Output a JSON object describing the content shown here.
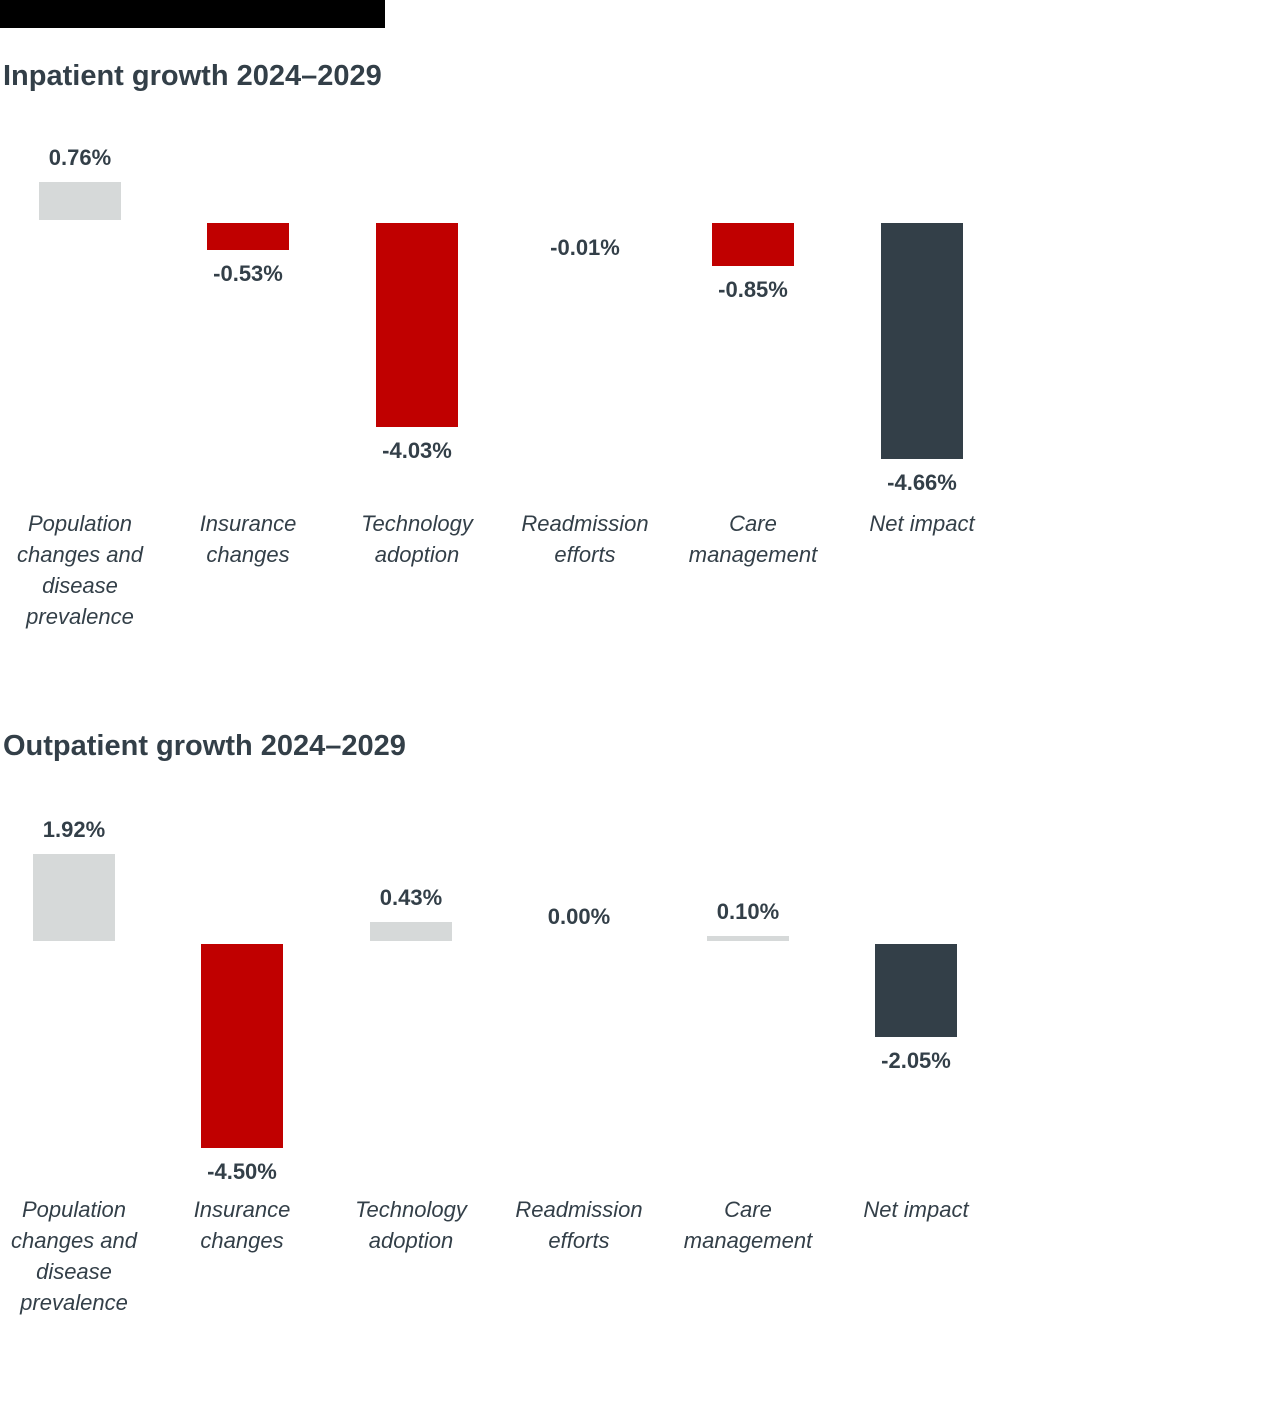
{
  "colors": {
    "background": "#ffffff",
    "top_bar": "#000000",
    "bar_positive": "#d6d9d9",
    "bar_negative": "#c00000",
    "bar_net": "#333f48",
    "text": "#333f48"
  },
  "chart_data": [
    {
      "type": "bar",
      "subtype": "impact-waterfall",
      "title": "Inpatient growth 2024–2029",
      "xlabel": "",
      "ylabel": "",
      "grid": false,
      "axes": "hidden",
      "legend": "none",
      "ylim": [
        -5,
        1
      ],
      "categories": [
        "Population changes and disease prevalence",
        "Insurance changes",
        "Technology adoption",
        "Readmission efforts",
        "Care management",
        "Net impact"
      ],
      "category_label_lines": [
        [
          "Population",
          "changes and",
          "disease",
          "prevalence"
        ],
        [
          "Insurance",
          "changes"
        ],
        [
          "Technology",
          "adoption"
        ],
        [
          "Readmission",
          "efforts"
        ],
        [
          "Care",
          "management"
        ],
        [
          "Net impact"
        ]
      ],
      "values": [
        0.76,
        -0.53,
        -4.03,
        -0.01,
        -0.85,
        -4.66
      ],
      "data_labels": [
        "0.76%",
        "-0.53%",
        "-4.03%",
        "-0.01%",
        "-0.85%",
        "-4.66%"
      ],
      "bar_colors": [
        "#d6d9d9",
        "#c00000",
        "#c00000",
        "#c00000",
        "#c00000",
        "#333f48"
      ]
    },
    {
      "type": "bar",
      "subtype": "impact-waterfall",
      "title": "Outpatient growth 2024–2029",
      "xlabel": "",
      "ylabel": "",
      "grid": false,
      "axes": "hidden",
      "legend": "none",
      "ylim": [
        -5,
        2
      ],
      "categories": [
        "Population changes and disease prevalence",
        "Insurance changes",
        "Technology adoption",
        "Readmission efforts",
        "Care management",
        "Net impact"
      ],
      "category_label_lines": [
        [
          "Population",
          "changes and",
          "disease",
          "prevalence"
        ],
        [
          "Insurance",
          "changes"
        ],
        [
          "Technology",
          "adoption"
        ],
        [
          "Readmission",
          "efforts"
        ],
        [
          "Care",
          "management"
        ],
        [
          "Net impact"
        ]
      ],
      "values": [
        1.92,
        -4.5,
        0.43,
        0.0,
        0.1,
        -2.05
      ],
      "data_labels": [
        "1.92%",
        "-4.50%",
        "0.43%",
        "0.00%",
        "0.10%",
        "-2.05%"
      ],
      "bar_colors": [
        "#d6d9d9",
        "#c00000",
        "#d6d9d9",
        "#d6d9d9",
        "#d6d9d9",
        "#333f48"
      ]
    }
  ]
}
